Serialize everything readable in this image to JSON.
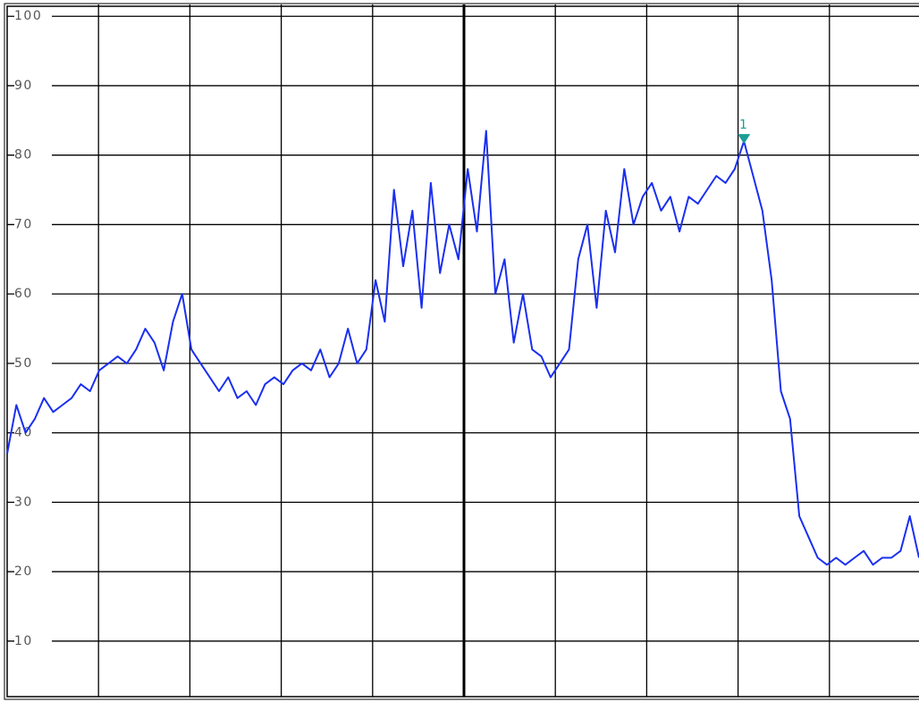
{
  "chart_data": {
    "type": "line",
    "values": [
      37,
      44,
      40,
      42,
      45,
      43,
      44,
      45,
      47,
      46,
      49,
      50,
      51,
      50,
      52,
      55,
      53,
      49,
      56,
      60,
      52,
      50,
      48,
      46,
      48,
      45,
      46,
      44,
      47,
      48,
      47,
      49,
      50,
      49,
      52,
      48,
      50,
      55,
      50,
      52,
      62,
      56,
      75,
      64,
      72,
      58,
      76,
      63,
      70,
      65,
      78,
      69,
      83.5,
      60,
      65,
      53,
      60,
      52,
      51,
      48,
      50,
      52,
      65,
      70,
      58,
      72,
      66,
      78,
      70,
      74,
      76,
      72,
      74,
      69,
      74,
      73,
      75,
      77,
      76,
      78,
      82,
      77,
      72,
      62,
      46,
      42,
      28,
      25,
      22,
      21,
      22,
      21,
      22,
      23,
      21,
      22,
      22,
      23,
      28,
      22
    ],
    "color": "#1a2ff0",
    "ylim": [
      2,
      101.7
    ],
    "yticks": [
      10,
      20,
      30,
      40,
      50,
      60,
      70,
      80,
      90,
      100
    ],
    "grid": true,
    "marker": {
      "label": "1",
      "value": 82,
      "color": "#1a9e96"
    }
  }
}
